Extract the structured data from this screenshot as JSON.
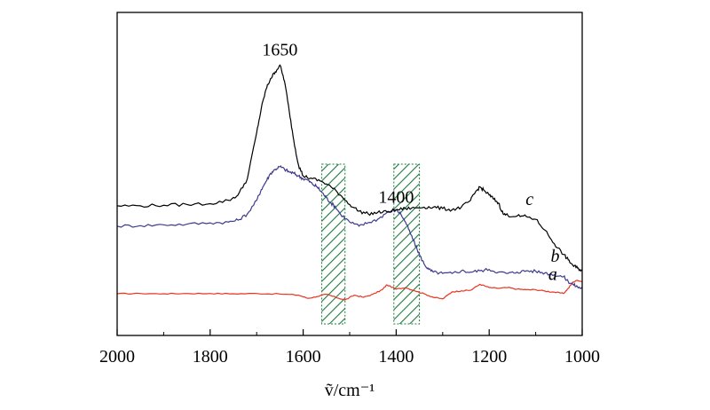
{
  "chart_data": {
    "type": "line",
    "xlabel": "ṽ/cm⁻¹",
    "xlim": [
      2000,
      1000
    ],
    "x_reversed": true,
    "x_ticks": [
      2000,
      1800,
      1600,
      1400,
      1200,
      1000
    ],
    "x_tick_labels": [
      "2000",
      "1800",
      "1600",
      "1400",
      "1200",
      "1000"
    ],
    "y_axis_visible": false,
    "ylim": [
      0,
      1
    ],
    "grid": false,
    "annotations": [
      {
        "text": "1650",
        "x": 1650,
        "y": 0.95
      },
      {
        "text": "1400",
        "x": 1400,
        "y": 0.405
      }
    ],
    "shaded_bands": [
      {
        "from": 1560,
        "to": 1510,
        "pattern": "hatch",
        "color": "#1e7a3c"
      },
      {
        "from": 1405,
        "to": 1350,
        "pattern": "hatch",
        "color": "#1e7a3c"
      }
    ],
    "series": [
      {
        "name": "a",
        "color": "#e8331f",
        "label_x": 1090,
        "x": [
          2000,
          1950,
          1900,
          1850,
          1800,
          1750,
          1700,
          1650,
          1610,
          1590,
          1570,
          1550,
          1530,
          1510,
          1490,
          1470,
          1450,
          1430,
          1420,
          1400,
          1380,
          1360,
          1340,
          1320,
          1300,
          1280,
          1260,
          1240,
          1220,
          1200,
          1180,
          1160,
          1140,
          1120,
          1100,
          1080,
          1060,
          1040,
          1030,
          1020,
          1010,
          1000
        ],
        "values": [
          0.095,
          0.096,
          0.095,
          0.096,
          0.096,
          0.095,
          0.096,
          0.094,
          0.09,
          0.078,
          0.085,
          0.093,
          0.082,
          0.072,
          0.09,
          0.082,
          0.093,
          0.11,
          0.128,
          0.112,
          0.118,
          0.106,
          0.095,
          0.082,
          0.076,
          0.102,
          0.106,
          0.108,
          0.13,
          0.118,
          0.115,
          0.118,
          0.112,
          0.11,
          0.11,
          0.105,
          0.101,
          0.096,
          0.115,
          0.138,
          0.145,
          0.14
        ]
      },
      {
        "name": "b",
        "color": "#3d3a8c",
        "label_x": 1085,
        "x": [
          2000,
          1950,
          1900,
          1850,
          1800,
          1760,
          1740,
          1720,
          1700,
          1690,
          1680,
          1670,
          1660,
          1650,
          1640,
          1630,
          1620,
          1610,
          1600,
          1590,
          1580,
          1570,
          1560,
          1550,
          1540,
          1530,
          1520,
          1500,
          1480,
          1460,
          1440,
          1420,
          1400,
          1390,
          1380,
          1370,
          1360,
          1350,
          1340,
          1330,
          1320,
          1300,
          1280,
          1260,
          1240,
          1220,
          1200,
          1180,
          1160,
          1140,
          1120,
          1100,
          1080,
          1060,
          1040,
          1030,
          1020,
          1010,
          1000
        ],
        "values": [
          0.345,
          0.347,
          0.35,
          0.352,
          0.357,
          0.36,
          0.367,
          0.39,
          0.44,
          0.48,
          0.51,
          0.54,
          0.555,
          0.565,
          0.555,
          0.545,
          0.54,
          0.53,
          0.52,
          0.515,
          0.5,
          0.49,
          0.47,
          0.45,
          0.43,
          0.415,
          0.39,
          0.36,
          0.345,
          0.358,
          0.37,
          0.395,
          0.405,
          0.39,
          0.36,
          0.32,
          0.28,
          0.24,
          0.205,
          0.185,
          0.175,
          0.17,
          0.17,
          0.18,
          0.175,
          0.18,
          0.185,
          0.175,
          0.17,
          0.175,
          0.18,
          0.178,
          0.172,
          0.165,
          0.158,
          0.14,
          0.13,
          0.12,
          0.115
        ]
      },
      {
        "name": "c",
        "color": "#000000",
        "label_x": 1140,
        "x": [
          2000,
          1950,
          1900,
          1850,
          1800,
          1760,
          1740,
          1720,
          1700,
          1690,
          1680,
          1670,
          1660,
          1650,
          1640,
          1630,
          1620,
          1610,
          1600,
          1580,
          1560,
          1540,
          1520,
          1500,
          1480,
          1460,
          1440,
          1420,
          1400,
          1380,
          1360,
          1340,
          1320,
          1300,
          1280,
          1260,
          1240,
          1230,
          1220,
          1210,
          1200,
          1190,
          1180,
          1170,
          1160,
          1140,
          1120,
          1100,
          1080,
          1060,
          1040,
          1030,
          1020,
          1010,
          1000
        ],
        "values": [
          0.42,
          0.42,
          0.422,
          0.425,
          0.428,
          0.44,
          0.46,
          0.52,
          0.69,
          0.78,
          0.85,
          0.89,
          0.915,
          0.94,
          0.88,
          0.77,
          0.66,
          0.57,
          0.53,
          0.52,
          0.51,
          0.49,
          0.46,
          0.425,
          0.4,
          0.39,
          0.395,
          0.398,
          0.405,
          0.41,
          0.412,
          0.415,
          0.415,
          0.41,
          0.405,
          0.415,
          0.44,
          0.47,
          0.49,
          0.475,
          0.46,
          0.445,
          0.43,
          0.39,
          0.385,
          0.382,
          0.38,
          0.37,
          0.33,
          0.28,
          0.24,
          0.22,
          0.2,
          0.19,
          0.18
        ]
      }
    ]
  }
}
